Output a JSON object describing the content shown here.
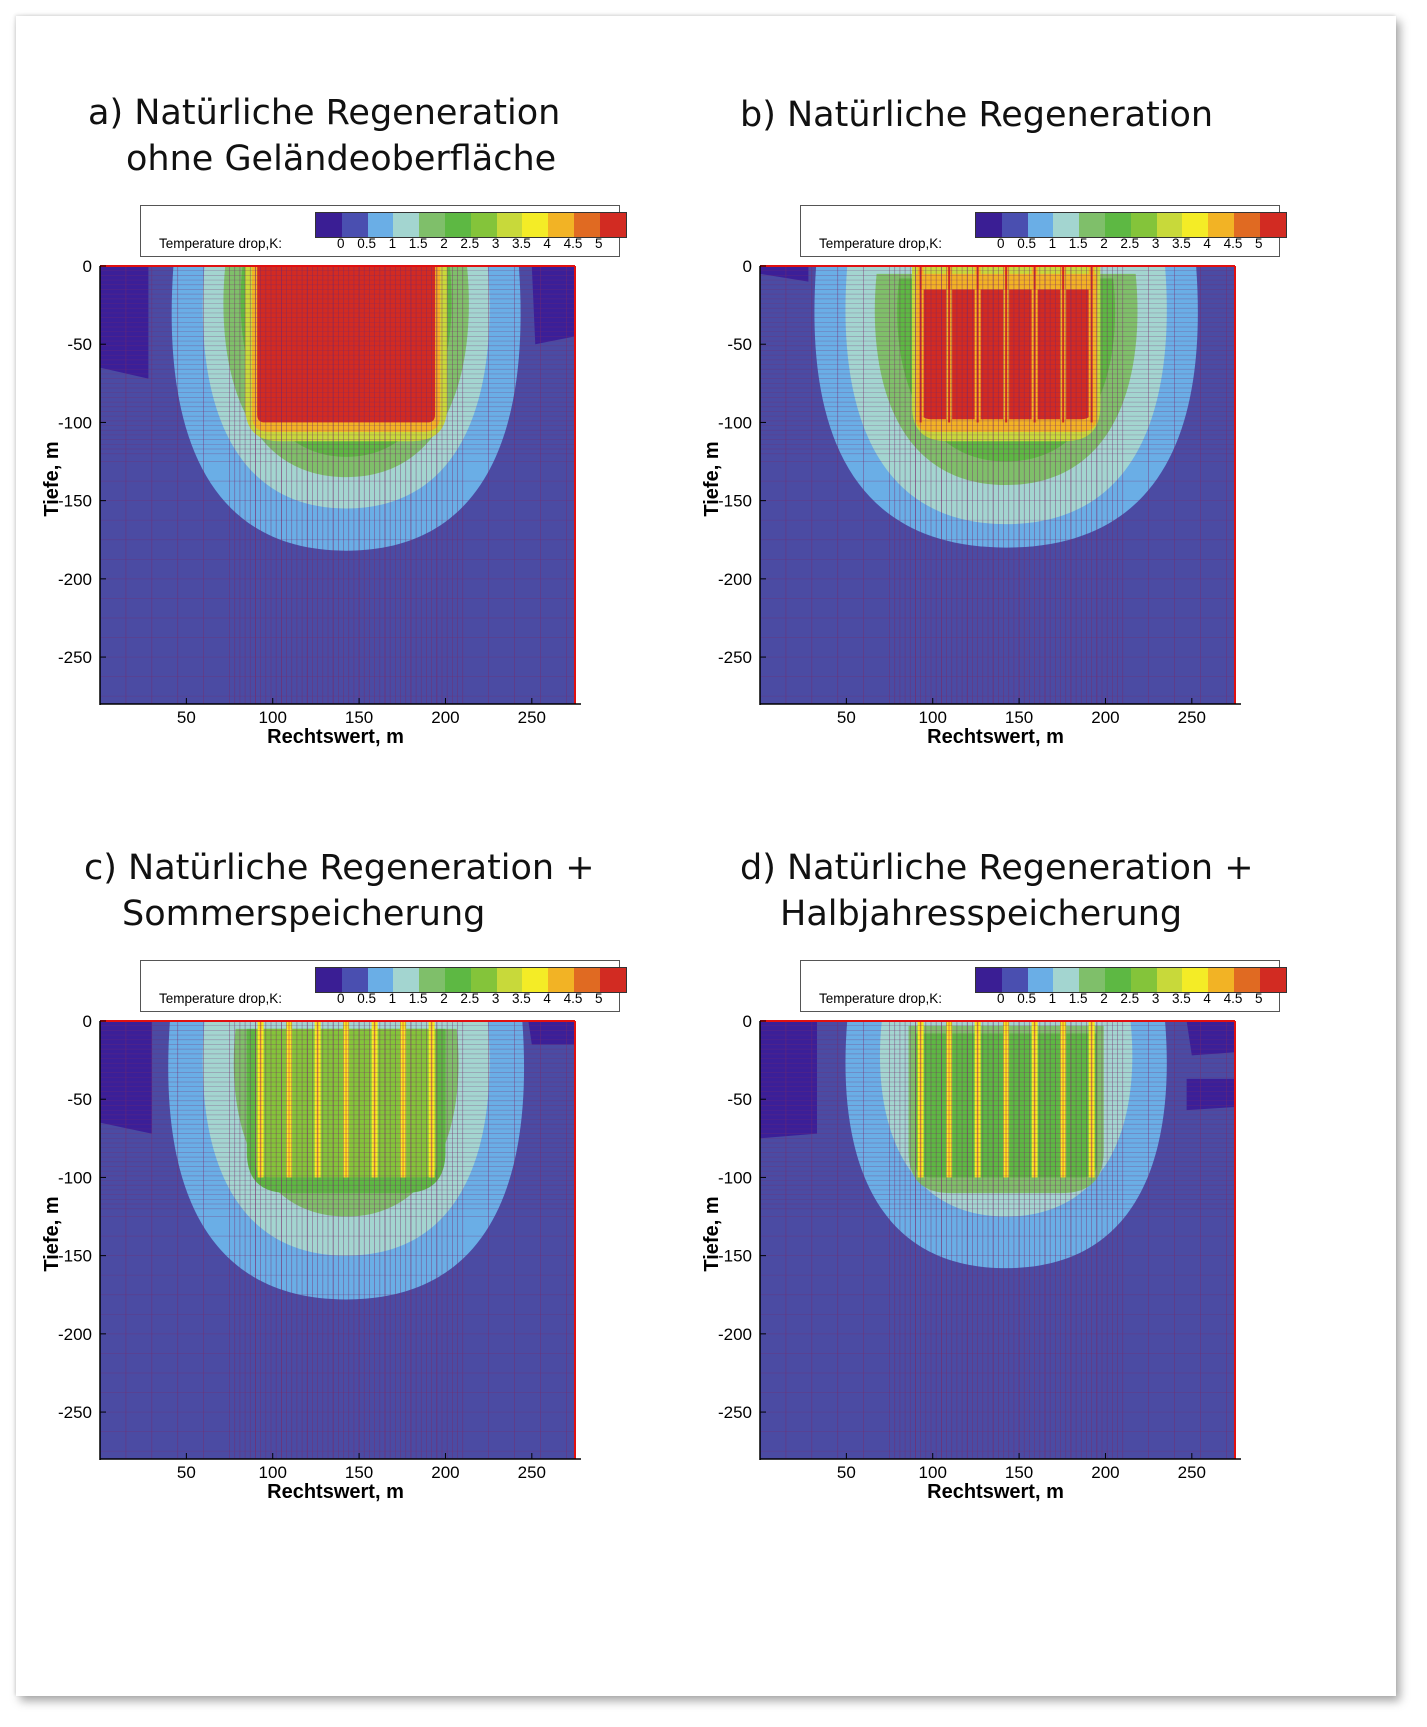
{
  "chart_data": [
    {
      "type": "heatmap",
      "title_line1": "a) Natürliche Regeneration",
      "title_line2": "ohne Geländeoberfläche",
      "xlabel": "Rechtswert, m",
      "ylabel": "Tiefe, m",
      "xlim": [
        0,
        275
      ],
      "ylim": [
        -280,
        0
      ],
      "x_ticks": [
        50,
        100,
        150,
        200,
        250
      ],
      "y_ticks": [
        0,
        -50,
        -100,
        -150,
        -200,
        -250
      ],
      "colorbar_label": "Temperature drop,K:",
      "colorbar_ticks": [
        "0",
        "0.5",
        "1",
        "1.5",
        "2",
        "2.5",
        "3",
        "3.5",
        "4",
        "4.5",
        "5"
      ],
      "colorbar_colors": [
        "#3a1e94",
        "#4a4fb0",
        "#6aaee6",
        "#a3d5d0",
        "#7fbf6a",
        "#5db843",
        "#84c43a",
        "#c8d93a",
        "#f4ec26",
        "#f2b325",
        "#e06a22",
        "#d22b22"
      ],
      "scenario": "a",
      "field_depth_m": [
        0,
        -100
      ],
      "field_x_m": [
        90,
        195
      ],
      "max_temperature_drop_K": 5
    },
    {
      "type": "heatmap",
      "title_line1": "b) Natürliche Regeneration",
      "title_line2": "",
      "xlabel": "Rechtswert, m",
      "ylabel": "Tiefe, m",
      "xlim": [
        0,
        275
      ],
      "ylim": [
        -280,
        0
      ],
      "x_ticks": [
        50,
        100,
        150,
        200,
        250
      ],
      "y_ticks": [
        0,
        -50,
        -100,
        -150,
        -200,
        -250
      ],
      "colorbar_label": "Temperature drop,K:",
      "colorbar_ticks": [
        "0",
        "0.5",
        "1",
        "1.5",
        "2",
        "2.5",
        "3",
        "3.5",
        "4",
        "4.5",
        "5"
      ],
      "colorbar_colors": [
        "#3a1e94",
        "#4a4fb0",
        "#6aaee6",
        "#a3d5d0",
        "#7fbf6a",
        "#5db843",
        "#84c43a",
        "#c8d93a",
        "#f4ec26",
        "#f2b325",
        "#e06a22",
        "#d22b22"
      ],
      "scenario": "b",
      "field_depth_m": [
        0,
        -100
      ],
      "field_x_m": [
        90,
        195
      ],
      "max_temperature_drop_K": 5
    },
    {
      "type": "heatmap",
      "title_line1": "c) Natürliche Regeneration +",
      "title_line2": "Sommerspeicherung",
      "xlabel": "Rechtswert, m",
      "ylabel": "Tiefe, m",
      "xlim": [
        0,
        275
      ],
      "ylim": [
        -280,
        0
      ],
      "x_ticks": [
        50,
        100,
        150,
        200,
        250
      ],
      "y_ticks": [
        0,
        -50,
        -100,
        -150,
        -200,
        -250
      ],
      "colorbar_label": "Temperature drop,K:",
      "colorbar_ticks": [
        "0",
        "0.5",
        "1",
        "1.5",
        "2",
        "2.5",
        "3",
        "3.5",
        "4",
        "4.5",
        "5"
      ],
      "colorbar_colors": [
        "#3a1e94",
        "#4a4fb0",
        "#6aaee6",
        "#a3d5d0",
        "#7fbf6a",
        "#5db843",
        "#84c43a",
        "#c8d93a",
        "#f4ec26",
        "#f2b325",
        "#e06a22",
        "#d22b22"
      ],
      "scenario": "c",
      "field_depth_m": [
        0,
        -100
      ],
      "field_x_m": [
        90,
        195
      ],
      "max_temperature_drop_K": 4
    },
    {
      "type": "heatmap",
      "title_line1": "d) Natürliche Regeneration +",
      "title_line2": "Halbjahresspeicherung",
      "xlabel": "Rechtswert, m",
      "ylabel": "Tiefe, m",
      "xlim": [
        0,
        275
      ],
      "ylim": [
        -280,
        0
      ],
      "x_ticks": [
        50,
        100,
        150,
        200,
        250
      ],
      "y_ticks": [
        0,
        -50,
        -100,
        -150,
        -200,
        -250
      ],
      "colorbar_label": "Temperature drop,K:",
      "colorbar_ticks": [
        "0",
        "0.5",
        "1",
        "1.5",
        "2",
        "2.5",
        "3",
        "3.5",
        "4",
        "4.5",
        "5"
      ],
      "colorbar_colors": [
        "#3a1e94",
        "#4a4fb0",
        "#6aaee6",
        "#a3d5d0",
        "#7fbf6a",
        "#5db843",
        "#84c43a",
        "#c8d93a",
        "#f4ec26",
        "#f2b325",
        "#e06a22",
        "#d22b22"
      ],
      "scenario": "d",
      "field_depth_m": [
        0,
        -100
      ],
      "field_x_m": [
        90,
        195
      ],
      "max_temperature_drop_K": 4
    }
  ]
}
